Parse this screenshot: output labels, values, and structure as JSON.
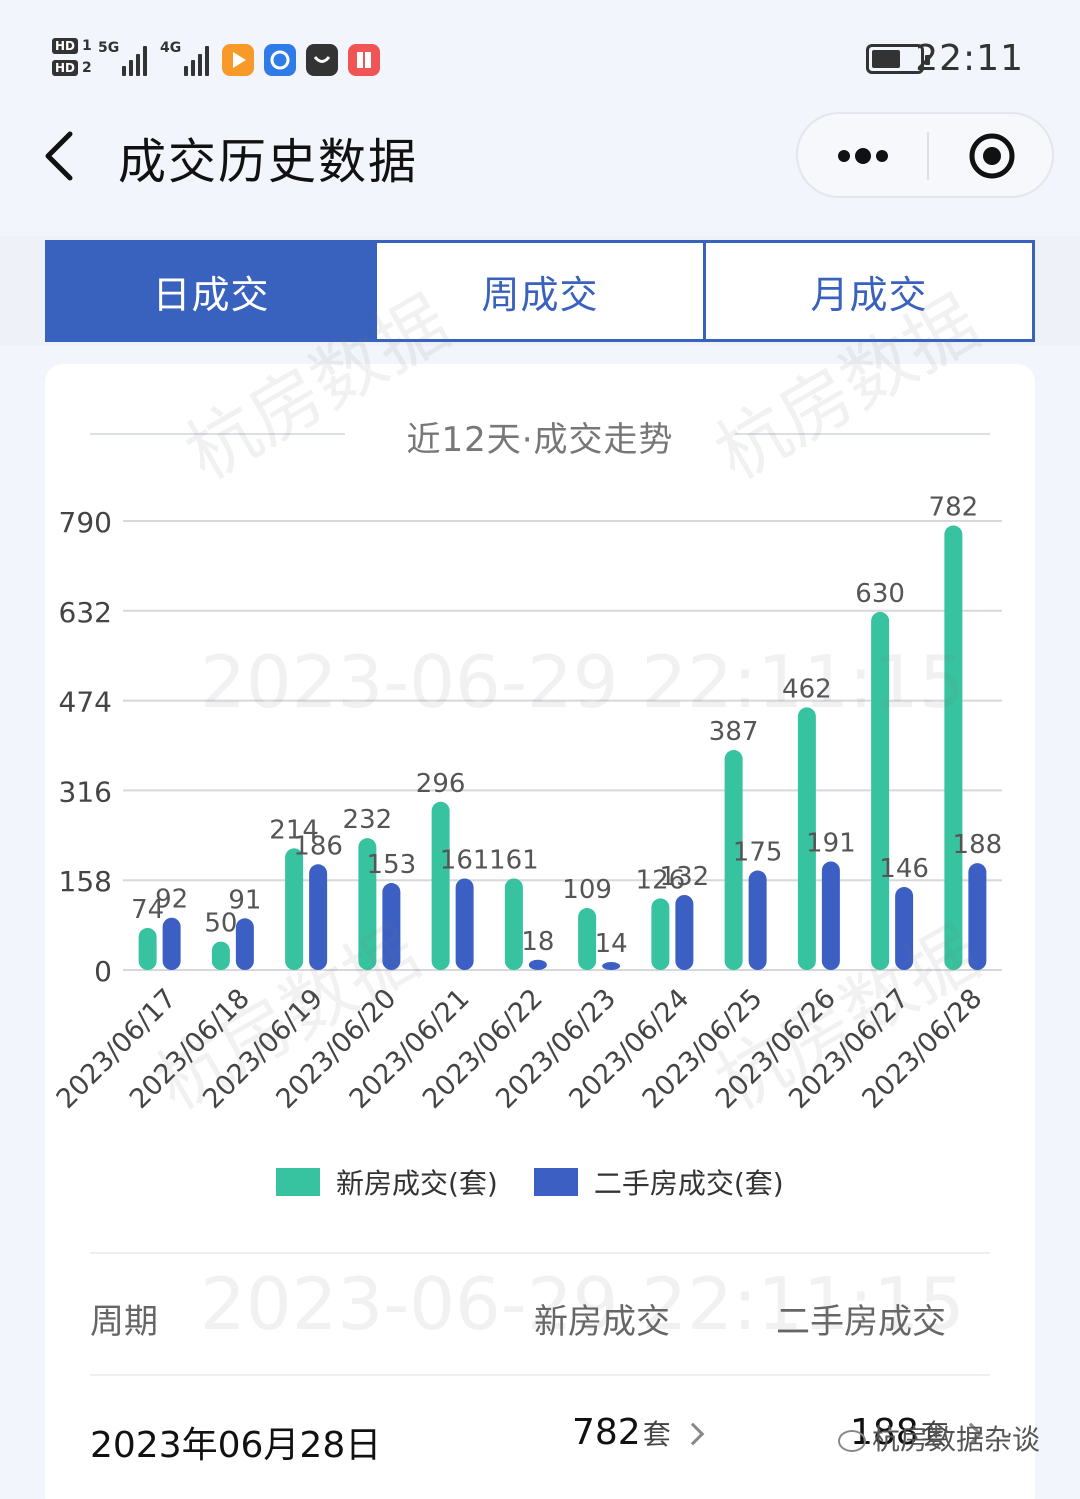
{
  "status_bar": {
    "time": "22:11",
    "network_a": "5G",
    "network_b": "4G",
    "sim_a": "HD",
    "sim_b": "HD"
  },
  "nav": {
    "title": "成交历史数据"
  },
  "tabs": [
    {
      "label": "日成交",
      "active": true
    },
    {
      "label": "周成交",
      "active": false
    },
    {
      "label": "月成交",
      "active": false
    }
  ],
  "chart_data": {
    "type": "bar",
    "title": "近12天·成交走势",
    "categories": [
      "2023/06/17",
      "2023/06/18",
      "2023/06/19",
      "2023/06/20",
      "2023/06/21",
      "2023/06/22",
      "2023/06/23",
      "2023/06/24",
      "2023/06/25",
      "2023/06/26",
      "2023/06/27",
      "2023/06/28"
    ],
    "series": [
      {
        "name": "新房成交(套)",
        "color": "#37c3a0",
        "values": [
          74,
          50,
          214,
          232,
          296,
          161,
          109,
          126,
          387,
          462,
          630,
          782
        ]
      },
      {
        "name": "二手房成交(套)",
        "color": "#3c5fc4",
        "values": [
          92,
          91,
          186,
          153,
          161,
          18,
          14,
          132,
          175,
          191,
          146,
          188
        ]
      }
    ],
    "yticks": [
      "0",
      "158",
      "316",
      "474",
      "632",
      "790"
    ],
    "ylim": [
      0,
      790
    ],
    "grid": true,
    "legend": "bottom"
  },
  "table": {
    "headers": [
      "周期",
      "新房成交",
      "二手房成交"
    ],
    "rows": [
      {
        "period": "2023年06月28日",
        "new": "782",
        "new_unit": "套",
        "second": "188",
        "second_unit": "套"
      }
    ]
  },
  "watermarks": {
    "brand": "杭房数据",
    "timestamp": "2023-06-29 22:11:15",
    "wechat_account": "杭房数据杂谈"
  }
}
